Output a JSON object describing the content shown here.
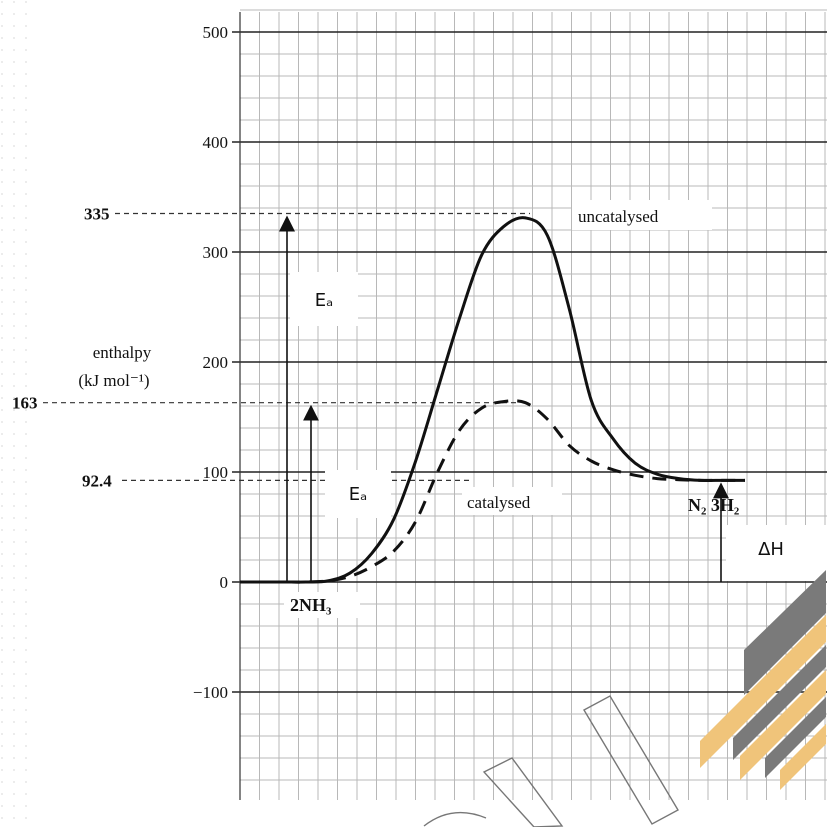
{
  "chart_data": {
    "type": "line",
    "ylabel": [
      "enthalpy",
      "(kJ mol⁻¹)"
    ],
    "yticks": [
      500,
      400,
      300,
      200,
      100,
      0,
      -100
    ],
    "ylim": [
      -200,
      500
    ],
    "grid": true,
    "marked_levels": [
      {
        "label": "335",
        "value": 335
      },
      {
        "label": "163",
        "value": 163
      },
      {
        "label": "92.4",
        "value": 92.4
      }
    ],
    "series": [
      {
        "name": "uncatalysed",
        "style": "solid",
        "x": [
          0,
          1,
          2,
          3,
          4,
          5,
          6,
          7,
          8,
          9,
          10,
          11,
          12,
          13,
          14,
          15,
          16,
          17,
          18,
          19,
          20,
          21,
          22,
          23
        ],
        "y": [
          0,
          0,
          0,
          0,
          1,
          8,
          26,
          57,
          110,
          175,
          240,
          297,
          323,
          331,
          315,
          248,
          165,
          130,
          108,
          98,
          94,
          92.4,
          92.4,
          92.4
        ]
      },
      {
        "name": "catalysed",
        "style": "dashed",
        "x": [
          0,
          1,
          2,
          3,
          4,
          5,
          6,
          7,
          8,
          9,
          10,
          11,
          12,
          13,
          14,
          15,
          16,
          17,
          18,
          19,
          20,
          21,
          22,
          23
        ],
        "y": [
          0,
          0,
          0,
          0,
          1,
          5,
          14,
          28,
          55,
          100,
          138,
          158,
          164,
          163,
          148,
          124,
          110,
          102,
          97,
          94,
          93,
          92.4,
          92.4,
          92.4
        ]
      }
    ],
    "annotations": {
      "uncatalysed": "uncatalysed",
      "catalysed": "catalysed",
      "reactant": "2NH₃",
      "product": "N₂ 3H₂",
      "ea": "Eₐ",
      "dh": "ΔH"
    }
  }
}
